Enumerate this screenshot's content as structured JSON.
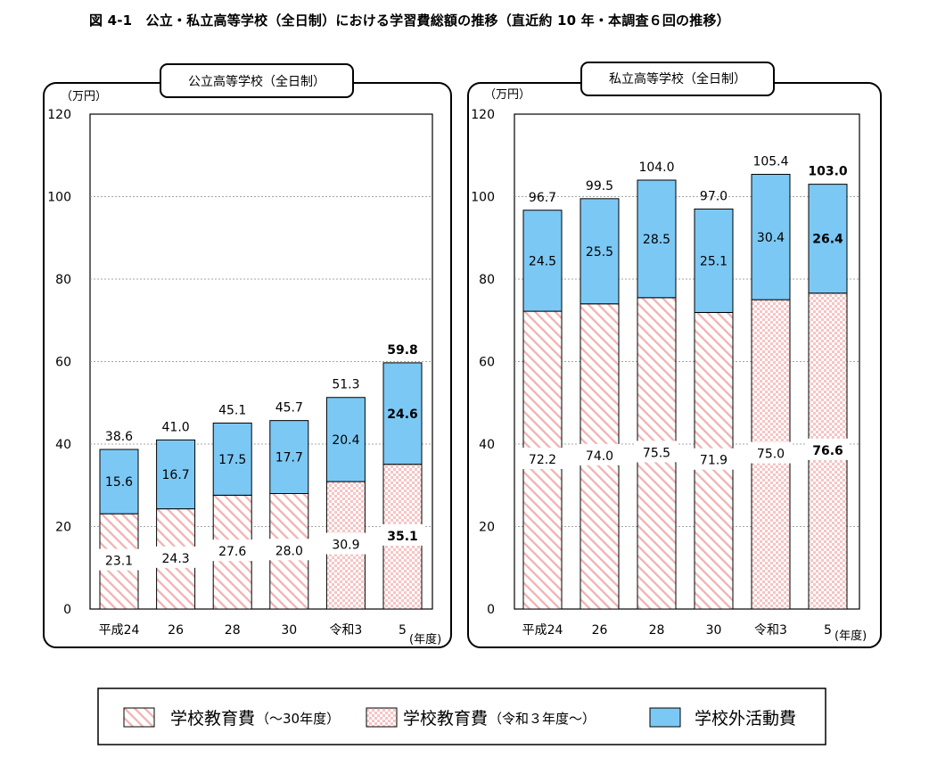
{
  "figure_title": "図 4-1　公立・私立高等学校（全日制）における学習費総額の推移（直近約 10 年・本調査６回の推移）",
  "colors": {
    "outside": "#7cc8f4",
    "hatch_line": "#f4b0b0",
    "check": "#f6c4c4"
  },
  "legend": {
    "items": [
      {
        "key": "school_old",
        "label": "学校教育費",
        "suffix": "（〜30年度）"
      },
      {
        "key": "school_new",
        "label": "学校教育費",
        "suffix": "（令和３年度〜）"
      },
      {
        "key": "outside",
        "label": "学校外活動費",
        "suffix": ""
      }
    ]
  },
  "chart_data": [
    {
      "type": "bar",
      "stacked": true,
      "title": "公立高等学校（全日制）",
      "unit": "（万円）",
      "year_unit": "(年度)",
      "ylim": [
        0,
        120
      ],
      "yticks": [
        "0",
        "20",
        "40",
        "60",
        "80",
        "100",
        "120"
      ],
      "categories": [
        "平成24",
        "26",
        "28",
        "30",
        "令和3",
        "5"
      ],
      "series": [
        {
          "name": "学校教育費",
          "values": [
            23.1,
            24.3,
            27.6,
            28.0,
            30.9,
            35.1
          ],
          "labels": [
            "23.1",
            "24.3",
            "27.6",
            "28.0",
            "30.9",
            "35.1"
          ],
          "styles": [
            "hatch",
            "hatch",
            "hatch",
            "hatch",
            "check",
            "check"
          ]
        },
        {
          "name": "学校外活動費",
          "values": [
            15.6,
            16.7,
            17.5,
            17.7,
            20.4,
            24.6
          ],
          "labels": [
            "15.6",
            "16.7",
            "17.5",
            "17.7",
            "20.4",
            "24.6"
          ]
        }
      ],
      "totals": [
        38.6,
        41.0,
        45.1,
        45.7,
        51.3,
        59.8
      ],
      "total_labels": [
        "38.6",
        "41.0",
        "45.1",
        "45.7",
        "51.3",
        "59.8"
      ],
      "highlight_index": 5,
      "grid": true
    },
    {
      "type": "bar",
      "stacked": true,
      "title": "私立高等学校（全日制）",
      "unit": "（万円）",
      "year_unit": "(年度)",
      "ylim": [
        0,
        120
      ],
      "yticks": [
        "0",
        "20",
        "40",
        "60",
        "80",
        "100",
        "120"
      ],
      "categories": [
        "平成24",
        "26",
        "28",
        "30",
        "令和3",
        "5"
      ],
      "series": [
        {
          "name": "学校教育費",
          "values": [
            72.2,
            74.0,
            75.5,
            71.9,
            75.0,
            76.6
          ],
          "labels": [
            "72.2",
            "74.0",
            "75.5",
            "71.9",
            "75.0",
            "76.6"
          ],
          "styles": [
            "hatch",
            "hatch",
            "hatch",
            "hatch",
            "check",
            "check"
          ]
        },
        {
          "name": "学校外活動費",
          "values": [
            24.5,
            25.5,
            28.5,
            25.1,
            30.4,
            26.4
          ],
          "labels": [
            "24.5",
            "25.5",
            "28.5",
            "25.1",
            "30.4",
            "26.4"
          ]
        }
      ],
      "totals": [
        96.7,
        99.5,
        104.0,
        97.0,
        105.4,
        103.0
      ],
      "total_labels": [
        "96.7",
        "99.5",
        "104.0",
        "97.0",
        "105.4",
        "103.0"
      ],
      "highlight_index": 5,
      "grid": true
    }
  ]
}
